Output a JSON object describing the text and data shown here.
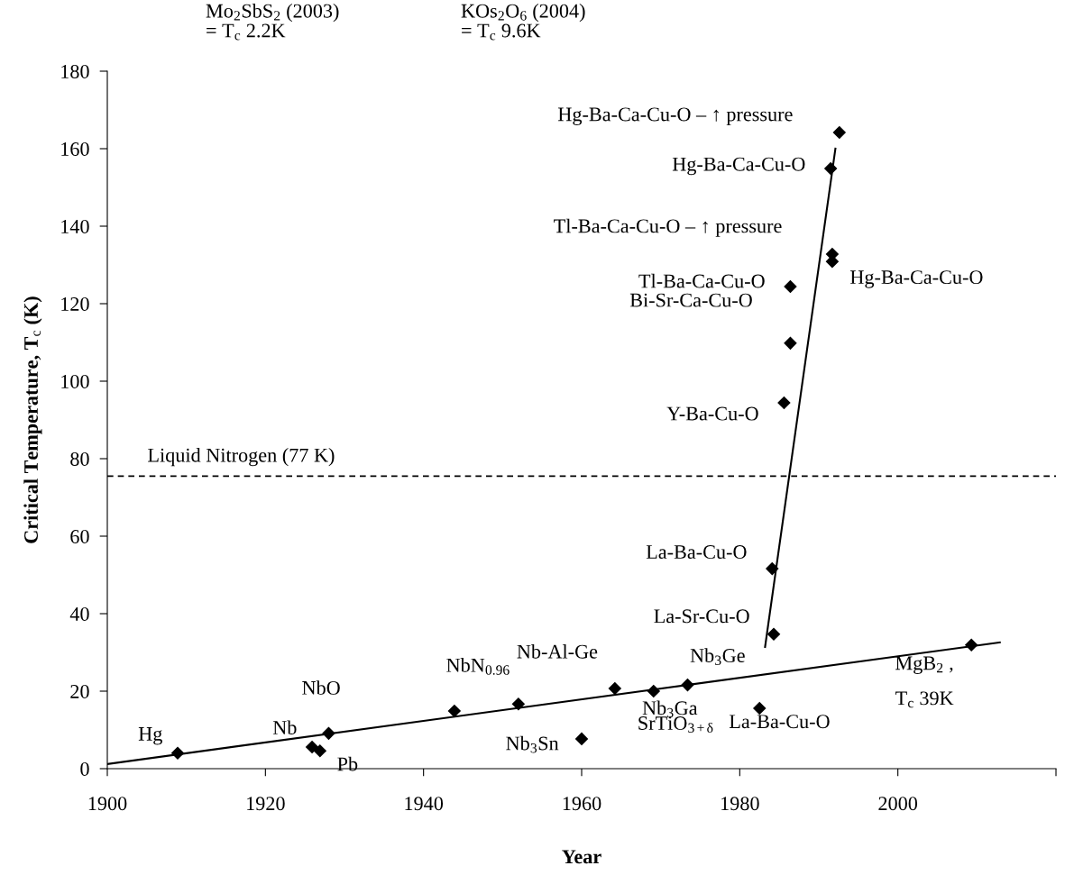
{
  "chart_data": {
    "type": "scatter",
    "xlabel": "Year",
    "ylabel": "Critical Temperature, T$_{c}$ (K)",
    "xlim": [
      1900,
      2020
    ],
    "xticks": [
      1900,
      1920,
      1940,
      1960,
      1980,
      2000,
      {
        "value": 2020,
        "label": null
      }
    ],
    "ylim": [
      0,
      180
    ],
    "yticks": [
      0,
      20,
      40,
      60,
      80,
      100,
      120,
      140,
      160,
      180
    ],
    "series": [
      {
        "color": "#000000",
        "marker": "diamond",
        "x": [
          1908.9,
          1925.9,
          1926.9,
          1928.0,
          1943.9,
          1952.0,
          1960.0,
          1964.2,
          1969.1,
          1973.4,
          1982.5,
          1984.3,
          1984.1,
          2009.3,
          1992.6,
          1991.5,
          1991.7,
          1991.7,
          1986.4,
          1986.4,
          1985.6
        ],
        "values": [
          4.0,
          5.6,
          4.6,
          9.1,
          14.9,
          16.7,
          7.7,
          20.7,
          20.0,
          21.6,
          15.6,
          34.7,
          51.6,
          31.9,
          164.2,
          154.9,
          132.8,
          130.9,
          124.4,
          109.8,
          94.4
        ]
      },
      {
        "type": "line",
        "color": "#000000",
        "marker": "none",
        "x": [
          1900,
          2012.9
        ],
        "values": [
          1.2,
          32.6
        ]
      },
      {
        "type": "line",
        "color": "#000000",
        "marker": "none",
        "x": [
          1983.2,
          1992.1
        ],
        "values": [
          31.4,
          160.0
        ]
      }
    ],
    "ref_lines": [
      {
        "axis": "y",
        "value": 75.5,
        "label": "Liquid Nitrogen (77 K)",
        "color": "#000000",
        "line_style": "dashed"
      }
    ],
    "annotations": [
      "Mo$_{2}$SbS$_{2}$ (2003)\n= T$_{c}$ 2.2K",
      "KOs$_{2}$O$_{6}$ (2004)\n= T$_{c}$ 9.6K",
      {
        "text": "Hg",
        "x": 1908.9,
        "y": 4.0
      },
      {
        "text": "Nb",
        "x": 1925.9,
        "y": 5.6
      },
      {
        "text": "Pb",
        "x": 1926.9,
        "y": 4.6
      },
      {
        "text": "NbO",
        "x": 1928.0,
        "y": 9.1
      },
      {
        "text": "NbN$_{0.96}$",
        "x": 1943.9,
        "y": 14.9
      },
      {
        "text": "Nb$_{3}$Sn",
        "x": 1952.0,
        "y": 16.7
      },
      {
        "text": "SrTiO$_{3+δ}$",
        "x": 1960.0,
        "y": 7.7
      },
      {
        "text": "Nb-Al-Ge",
        "x": 1964.2,
        "y": 20.7
      },
      {
        "text": "Nb$_{3}$Ga",
        "x": 1969.1,
        "y": 20.0
      },
      {
        "text": "Nb$_{3}$Ge",
        "x": 1973.4,
        "y": 21.6
      },
      {
        "text": "La-Ba-Cu-O",
        "x": 1982.5,
        "y": 15.6
      },
      {
        "text": "La-Sr-Cu-O",
        "x": 1984.3,
        "y": 34.7
      },
      {
        "text": "La-Ba-Cu-O",
        "x": 1984.1,
        "y": 51.6
      },
      {
        "text": "MgB$_{2}$ ,",
        "x": 2009.3,
        "y": 31.9
      },
      {
        "text": "T$_{c}$ 39K",
        "x": 2009.3,
        "y": 31.9
      },
      {
        "text": "Hg-Ba-Ca-Cu-O – ↑ pressure",
        "x": 1992.6,
        "y": 164.2
      },
      {
        "text": "Hg-Ba-Ca-Cu-O",
        "x": 1991.5,
        "y": 154.9
      },
      {
        "text": "Tl-Ba-Ca-Cu-O – ↑ pressure",
        "x": 1991.7,
        "y": 132.8
      },
      {
        "text": "Hg-Ba-Ca-Cu-O",
        "x": 1991.7,
        "y": 130.9
      },
      {
        "text": "Tl-Ba-Ca-Cu-O",
        "x": 1986.4,
        "y": 124.4
      },
      {
        "text": "Bi-Sr-Ca-Cu-O",
        "x": 1986.4,
        "y": 109.8
      },
      {
        "text": "Y-Ba-Cu-O",
        "x": 1985.6,
        "y": 94.4
      }
    ]
  }
}
